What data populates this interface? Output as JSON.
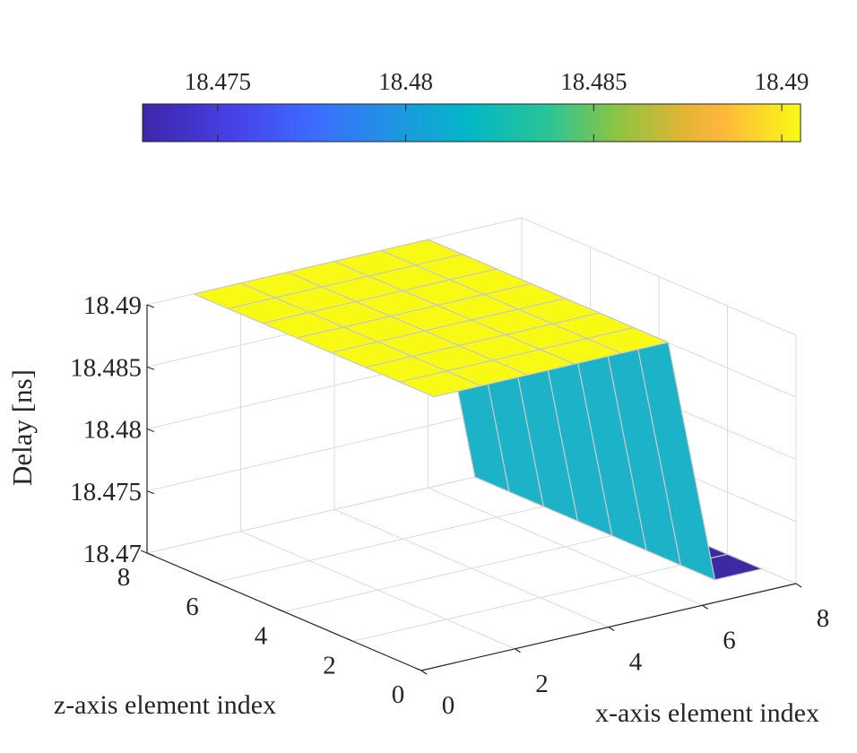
{
  "chart_data": {
    "type": "surface",
    "title": "",
    "xlabel": "x-axis element index",
    "ylabel": "z-axis element index",
    "zlabel": "Delay [ns]",
    "x": [
      1,
      2,
      3,
      4,
      5,
      6,
      7,
      8
    ],
    "y": [
      1,
      2,
      3,
      4,
      5,
      6,
      7,
      8
    ],
    "z": [
      [
        18.49,
        18.49,
        18.49,
        18.49,
        18.49,
        18.49,
        18.47,
        18.47
      ],
      [
        18.49,
        18.49,
        18.49,
        18.49,
        18.49,
        18.49,
        18.47,
        18.47
      ],
      [
        18.49,
        18.49,
        18.49,
        18.49,
        18.49,
        18.49,
        18.47,
        18.47
      ],
      [
        18.49,
        18.49,
        18.49,
        18.49,
        18.49,
        18.49,
        18.47,
        18.47
      ],
      [
        18.49,
        18.49,
        18.49,
        18.49,
        18.49,
        18.49,
        18.47,
        18.47
      ],
      [
        18.49,
        18.49,
        18.49,
        18.49,
        18.49,
        18.49,
        18.47,
        18.47
      ],
      [
        18.49,
        18.49,
        18.49,
        18.49,
        18.49,
        18.49,
        18.47,
        18.47
      ],
      [
        18.49,
        18.49,
        18.49,
        18.49,
        18.49,
        18.49,
        18.47,
        18.47
      ]
    ],
    "xlim": [
      0,
      8
    ],
    "ylim": [
      0,
      8
    ],
    "zlim": [
      18.47,
      18.49
    ],
    "x_ticks": [
      "0",
      "2",
      "4",
      "6",
      "8"
    ],
    "y_ticks": [
      "0",
      "2",
      "4",
      "6",
      "8"
    ],
    "z_ticks": [
      "18.47",
      "18.475",
      "18.48",
      "18.485",
      "18.49"
    ],
    "colorbar": {
      "orientation": "horizontal",
      "placement": "top",
      "range": [
        18.473,
        18.4905
      ],
      "ticks": [
        "18.475",
        "18.48",
        "18.485",
        "18.49"
      ]
    },
    "colormap": "parula",
    "grid": true
  }
}
